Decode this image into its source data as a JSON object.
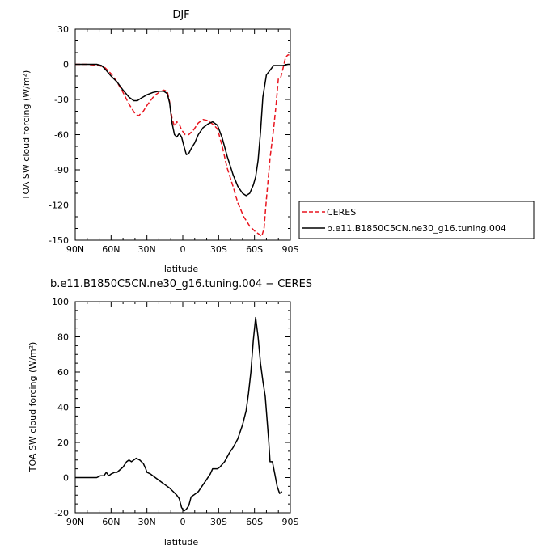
{
  "chart_data": [
    {
      "type": "line",
      "title": "DJF",
      "xlabel": "latitude",
      "ylabel": "TOA SW cloud forcing (W/m²)",
      "xlim": [
        90,
        -90
      ],
      "ylim": [
        -150,
        30
      ],
      "x_ticks": [
        90,
        60,
        30,
        0,
        -30,
        -60,
        -90
      ],
      "x_tick_labels": [
        "90N",
        "60N",
        "30N",
        "0",
        "30S",
        "60S",
        "90S"
      ],
      "y_ticks": [
        30,
        0,
        -30,
        -60,
        -90,
        -120,
        -150
      ],
      "y_tick_labels": [
        "30",
        "0",
        "-30",
        "-60",
        "-90",
        "-120",
        "-150"
      ],
      "legend_position": "right",
      "series": [
        {
          "name": "CERES",
          "color": "#e8141e",
          "dash": "dashed",
          "points": [
            [
              90,
              0
            ],
            [
              80,
              0
            ],
            [
              70,
              -1
            ],
            [
              65,
              -3
            ],
            [
              60,
              -8
            ],
            [
              55,
              -15
            ],
            [
              50,
              -24
            ],
            [
              45,
              -34
            ],
            [
              40,
              -42
            ],
            [
              37,
              -44
            ],
            [
              33,
              -40
            ],
            [
              30,
              -35
            ],
            [
              27,
              -31
            ],
            [
              24,
              -27
            ],
            [
              20,
              -24
            ],
            [
              16,
              -22
            ],
            [
              13,
              -23
            ],
            [
              11,
              -32
            ],
            [
              9,
              -46
            ],
            [
              7,
              -53
            ],
            [
              5,
              -49
            ],
            [
              3,
              -51
            ],
            [
              1,
              -56
            ],
            [
              -2,
              -60
            ],
            [
              -5,
              -60
            ],
            [
              -9,
              -56
            ],
            [
              -13,
              -50
            ],
            [
              -17,
              -47
            ],
            [
              -21,
              -48
            ],
            [
              -25,
              -51
            ],
            [
              -29,
              -55
            ],
            [
              -33,
              -70
            ],
            [
              -37,
              -88
            ],
            [
              -42,
              -104
            ],
            [
              -46,
              -118
            ],
            [
              -51,
              -130
            ],
            [
              -56,
              -138
            ],
            [
              -61,
              -143
            ],
            [
              -64,
              -145
            ],
            [
              -66,
              -147
            ],
            [
              -68,
              -140
            ],
            [
              -70,
              -115
            ],
            [
              -73,
              -80
            ],
            [
              -76,
              -55
            ],
            [
              -78,
              -35
            ],
            [
              -80,
              -12
            ],
            [
              -82,
              -11
            ],
            [
              -84,
              -3
            ],
            [
              -86,
              6
            ],
            [
              -88,
              8
            ],
            [
              -89,
              8
            ]
          ]
        },
        {
          "name": "b.e11.B1850C5CN.ne30_g16.tuning.004",
          "color": "#000000",
          "dash": "solid",
          "points": [
            [
              90,
              0
            ],
            [
              80,
              0
            ],
            [
              72,
              0
            ],
            [
              68,
              -1
            ],
            [
              65,
              -4
            ],
            [
              60,
              -10
            ],
            [
              55,
              -15
            ],
            [
              50,
              -22
            ],
            [
              45,
              -28
            ],
            [
              41,
              -31
            ],
            [
              38,
              -31
            ],
            [
              35,
              -29
            ],
            [
              30,
              -26
            ],
            [
              25,
              -24
            ],
            [
              20,
              -23
            ],
            [
              16,
              -23
            ],
            [
              13,
              -25
            ],
            [
              11,
              -33
            ],
            [
              9,
              -50
            ],
            [
              7,
              -60
            ],
            [
              5,
              -62
            ],
            [
              3,
              -59
            ],
            [
              1,
              -62
            ],
            [
              -1,
              -70
            ],
            [
              -3,
              -77
            ],
            [
              -5,
              -76
            ],
            [
              -7,
              -72
            ],
            [
              -10,
              -67
            ],
            [
              -13,
              -60
            ],
            [
              -17,
              -54
            ],
            [
              -21,
              -51
            ],
            [
              -25,
              -49
            ],
            [
              -29,
              -52
            ],
            [
              -33,
              -63
            ],
            [
              -37,
              -78
            ],
            [
              -42,
              -94
            ],
            [
              -46,
              -104
            ],
            [
              -50,
              -110
            ],
            [
              -53,
              -112
            ],
            [
              -56,
              -110
            ],
            [
              -59,
              -103
            ],
            [
              -61,
              -96
            ],
            [
              -63,
              -82
            ],
            [
              -65,
              -58
            ],
            [
              -67,
              -28
            ],
            [
              -70,
              -9
            ],
            [
              -73,
              -5
            ],
            [
              -76,
              -1
            ],
            [
              -80,
              -1
            ],
            [
              -84,
              -1
            ],
            [
              -88,
              0
            ],
            [
              -90,
              0
            ]
          ]
        }
      ]
    },
    {
      "type": "line",
      "title": "b.e11.B1850C5CN.ne30_g16.tuning.004 − CERES",
      "xlabel": "latitude",
      "ylabel": "TOA SW cloud forcing (W/m²)",
      "xlim": [
        90,
        -90
      ],
      "ylim": [
        -20,
        100
      ],
      "x_ticks": [
        90,
        60,
        30,
        0,
        -30,
        -60,
        -90
      ],
      "x_tick_labels": [
        "90N",
        "60N",
        "30N",
        "0",
        "30S",
        "60S",
        "90S"
      ],
      "y_ticks": [
        100,
        80,
        60,
        40,
        20,
        0,
        -20
      ],
      "y_tick_labels": [
        "100",
        "80",
        "60",
        "40",
        "20",
        "0",
        "-20"
      ],
      "series": [
        {
          "color": "#000000",
          "dash": "solid",
          "points": [
            [
              90,
              0
            ],
            [
              80,
              0
            ],
            [
              72,
              0
            ],
            [
              69,
              1
            ],
            [
              66,
              1
            ],
            [
              64,
              3
            ],
            [
              62,
              1
            ],
            [
              60,
              2
            ],
            [
              57,
              3
            ],
            [
              55,
              3
            ],
            [
              50,
              6
            ],
            [
              47,
              9
            ],
            [
              45,
              10
            ],
            [
              43,
              9
            ],
            [
              41,
              10
            ],
            [
              39,
              11
            ],
            [
              36,
              10
            ],
            [
              33,
              8
            ],
            [
              31,
              5
            ],
            [
              30,
              3
            ],
            [
              27,
              2
            ],
            [
              23,
              0
            ],
            [
              19,
              -2
            ],
            [
              15,
              -4
            ],
            [
              11,
              -6
            ],
            [
              8,
              -8
            ],
            [
              5,
              -10
            ],
            [
              3,
              -12
            ],
            [
              1,
              -17
            ],
            [
              -1,
              -19
            ],
            [
              -3,
              -18
            ],
            [
              -5,
              -16
            ],
            [
              -7,
              -11
            ],
            [
              -9,
              -10
            ],
            [
              -13,
              -8
            ],
            [
              -16,
              -5
            ],
            [
              -20,
              -1
            ],
            [
              -23,
              2
            ],
            [
              -25,
              5
            ],
            [
              -29,
              5
            ],
            [
              -31,
              6
            ],
            [
              -35,
              9
            ],
            [
              -39,
              14
            ],
            [
              -42,
              17
            ],
            [
              -46,
              22
            ],
            [
              -50,
              30
            ],
            [
              -53,
              38
            ],
            [
              -55,
              48
            ],
            [
              -57,
              60
            ],
            [
              -59,
              78
            ],
            [
              -61,
              91
            ],
            [
              -63,
              80
            ],
            [
              -65,
              65
            ],
            [
              -67,
              55
            ],
            [
              -69,
              46
            ],
            [
              -72,
              20
            ],
            [
              -73,
              9
            ],
            [
              -75,
              9
            ],
            [
              -77,
              2
            ],
            [
              -79,
              -5
            ],
            [
              -81,
              -9
            ],
            [
              -83,
              -8
            ]
          ]
        }
      ]
    }
  ]
}
